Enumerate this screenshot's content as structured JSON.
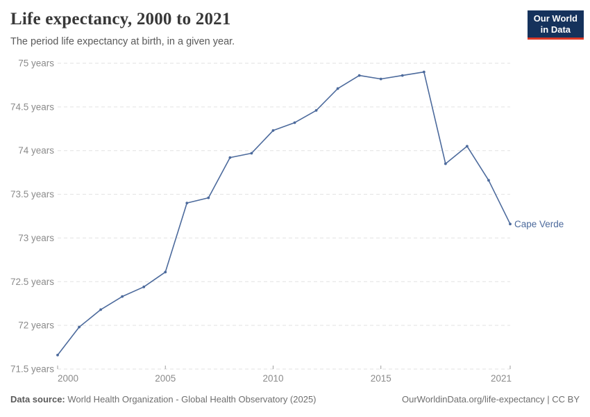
{
  "header": {
    "title": "Life expectancy, 2000 to 2021",
    "subtitle": "The period life expectancy at birth, in a given year.",
    "logo": {
      "line1": "Our World",
      "line2": "in Data"
    }
  },
  "chart_data": {
    "type": "line",
    "title": "Life expectancy, 2000 to 2021",
    "xlabel": "",
    "ylabel": "",
    "x": [
      2000,
      2001,
      2002,
      2003,
      2004,
      2005,
      2006,
      2007,
      2008,
      2009,
      2010,
      2011,
      2012,
      2013,
      2014,
      2015,
      2016,
      2017,
      2018,
      2019,
      2020,
      2021
    ],
    "series": [
      {
        "name": "Cape Verde",
        "values": [
          71.66,
          71.98,
          72.18,
          72.33,
          72.44,
          72.61,
          73.4,
          73.46,
          73.92,
          73.97,
          74.23,
          74.32,
          74.46,
          74.71,
          74.86,
          74.82,
          74.86,
          74.9,
          73.85,
          74.05,
          73.66,
          73.16
        ]
      }
    ],
    "x_ticks": [
      2000,
      2005,
      2010,
      2015,
      2021
    ],
    "y_ticks": [
      71.5,
      72,
      72.5,
      73,
      73.5,
      74,
      74.5,
      75
    ],
    "y_tick_suffix": " years",
    "xlim": [
      2000,
      2021
    ],
    "ylim": [
      71.5,
      75
    ],
    "grid": "horizontal-dashed",
    "legend": "end-of-line-label",
    "entity_label": "Cape Verde"
  },
  "footer": {
    "source_label": "Data source:",
    "source_value": " World Health Organization - Global Health Observatory (2025)",
    "rights": "OurWorldinData.org/life-expectancy | CC BY"
  },
  "colors": {
    "line": "#4c6a9c",
    "entity_label": "#4c6a9c",
    "grid": "#e2e2e2",
    "axis_text": "#8b8b8b",
    "tick": "#9e9e9e",
    "logo_bg": "#15325c",
    "logo_accent": "#dc3927"
  }
}
